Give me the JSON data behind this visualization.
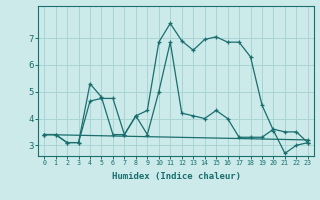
{
  "xlabel": "Humidex (Indice chaleur)",
  "bg_color": "#cceaea",
  "grid_color": "#aad4d4",
  "line_color": "#1a6e6e",
  "xlim": [
    -0.5,
    23.5
  ],
  "ylim": [
    2.6,
    8.2
  ],
  "yticks": [
    3,
    4,
    5,
    6,
    7
  ],
  "xticks": [
    0,
    1,
    2,
    3,
    4,
    5,
    6,
    7,
    8,
    9,
    10,
    11,
    12,
    13,
    14,
    15,
    16,
    17,
    18,
    19,
    20,
    21,
    22,
    23
  ],
  "line1_x": [
    0,
    1,
    2,
    3,
    4,
    5,
    6,
    7,
    8,
    9,
    10,
    11,
    12,
    13,
    14,
    15,
    16,
    17,
    18,
    19,
    20,
    21,
    22,
    23
  ],
  "line1_y": [
    3.4,
    3.4,
    3.1,
    3.1,
    4.65,
    4.75,
    4.75,
    3.4,
    4.1,
    4.3,
    6.85,
    7.55,
    6.9,
    6.55,
    6.95,
    7.05,
    6.85,
    6.85,
    6.3,
    4.5,
    3.55,
    2.7,
    3.0,
    3.1
  ],
  "line2_x": [
    0,
    1,
    2,
    3,
    4,
    5,
    6,
    7,
    8,
    9,
    10,
    11,
    12,
    13,
    14,
    15,
    16,
    17,
    18,
    19,
    20,
    21,
    22,
    23
  ],
  "line2_y": [
    3.4,
    3.4,
    3.1,
    3.1,
    5.3,
    4.8,
    3.4,
    3.4,
    4.1,
    3.4,
    5.0,
    6.85,
    4.2,
    4.1,
    4.0,
    4.3,
    4.0,
    3.3,
    3.3,
    3.3,
    3.6,
    3.5,
    3.5,
    3.1
  ],
  "line3_x": [
    0,
    23
  ],
  "line3_y": [
    3.4,
    3.2
  ]
}
